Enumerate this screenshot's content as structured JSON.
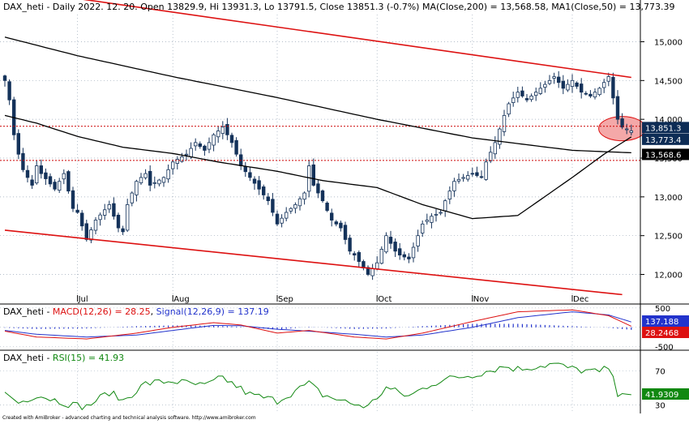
{
  "header": {
    "main_title": "DAX_heti - Daily 2022. 12. 20. Open 13829.9, Hi 13931.3, Lo 13791.5, Close 13851.3 (-0.7%) MA(Close,200) = 13,568.58, MA1(Close,50) = 13,773.39",
    "macd_title_prefix": "DAX_heti - ",
    "macd_title_macd": "MACD(12,26) = 28.25",
    "macd_title_sep": ", ",
    "macd_title_signal": "Signal(12,26,9) = 137.19",
    "rsi_title_prefix": "DAX_heti - ",
    "rsi_title_rsi": "RSI(15) = 41.93",
    "footer": "Created with AmiBroker - advanced charting and technical analysis software. http://www.amibroker.com"
  },
  "colors": {
    "background": "#ffffff",
    "grid": "#9aa8b8",
    "candle": "#14325a",
    "ma200": "#000000",
    "ma50": "#000000",
    "channel": "#dd1111",
    "level": "#cc0000",
    "highlight_fill": "#f4a8a8",
    "macd_line": "#dd1111",
    "signal_line": "#2233cc",
    "rsi_line": "#118811",
    "price_tag": "#0d2c55",
    "ma_tag": "#000000",
    "macd_tag": "#dd1111",
    "signal_tag": "#2233cc",
    "rsi_tag": "#118811"
  },
  "chart_data": [
    {
      "type": "candlestick",
      "panel": "price",
      "x_labels": [
        {
          "label": "Jul",
          "date": "2022-07-01"
        },
        {
          "label": "Aug",
          "date": "2022-08-01"
        },
        {
          "label": "Sep",
          "date": "2022-09-01"
        },
        {
          "label": "Oct",
          "date": "2022-10-03"
        },
        {
          "label": "Nov",
          "date": "2022-11-01"
        },
        {
          "label": "Dec",
          "date": "2022-12-01"
        }
      ],
      "y_ticks": [
        {
          "value": 12000,
          "label": "12,000"
        },
        {
          "value": 12500,
          "label": "12,500"
        },
        {
          "value": 13000,
          "label": "13,000"
        },
        {
          "value": 13500,
          "label": "13,500"
        },
        {
          "value": 14000,
          "label": "14,000"
        },
        {
          "value": 14500,
          "label": "14,500"
        },
        {
          "value": 15000,
          "label": "15,000"
        }
      ],
      "ylim": [
        11650,
        15350
      ],
      "close_anchors": [
        [
          "2022-06-09",
          14500
        ],
        [
          "2022-06-10",
          14250
        ],
        [
          "2022-06-13",
          13800
        ],
        [
          "2022-06-14",
          13550
        ],
        [
          "2022-06-15",
          13350
        ],
        [
          "2022-06-17",
          13150
        ],
        [
          "2022-06-20",
          13400
        ],
        [
          "2022-06-21",
          13300
        ],
        [
          "2022-06-24",
          13100
        ],
        [
          "2022-06-28",
          13300
        ],
        [
          "2022-06-30",
          12850
        ],
        [
          "2022-07-01",
          12800
        ],
        [
          "2022-07-05",
          12450
        ],
        [
          "2022-07-07",
          12700
        ],
        [
          "2022-07-12",
          12900
        ],
        [
          "2022-07-14",
          12600
        ],
        [
          "2022-07-15",
          12550
        ],
        [
          "2022-07-18",
          12900
        ],
        [
          "2022-07-20",
          13200
        ],
        [
          "2022-07-22",
          13300
        ],
        [
          "2022-07-25",
          13150
        ],
        [
          "2022-07-28",
          13250
        ],
        [
          "2022-08-01",
          13450
        ],
        [
          "2022-08-04",
          13550
        ],
        [
          "2022-08-08",
          13700
        ],
        [
          "2022-08-10",
          13600
        ],
        [
          "2022-08-12",
          13800
        ],
        [
          "2022-08-16",
          13900
        ],
        [
          "2022-08-18",
          13700
        ],
        [
          "2022-08-22",
          13400
        ],
        [
          "2022-08-24",
          13250
        ],
        [
          "2022-08-26",
          13100
        ],
        [
          "2022-08-30",
          12950
        ],
        [
          "2022-09-01",
          12650
        ],
        [
          "2022-09-05",
          12800
        ],
        [
          "2022-09-07",
          12900
        ],
        [
          "2022-09-09",
          13050
        ],
        [
          "2022-09-12",
          13400
        ],
        [
          "2022-09-13",
          13150
        ],
        [
          "2022-09-15",
          12950
        ],
        [
          "2022-09-19",
          12700
        ],
        [
          "2022-09-21",
          12600
        ],
        [
          "2022-09-23",
          12300
        ],
        [
          "2022-09-26",
          12250
        ],
        [
          "2022-09-29",
          12000
        ],
        [
          "2022-10-03",
          12150
        ],
        [
          "2022-10-05",
          12500
        ],
        [
          "2022-10-07",
          12300
        ],
        [
          "2022-10-10",
          12250
        ],
        [
          "2022-10-12",
          12200
        ],
        [
          "2022-10-13",
          12350
        ],
        [
          "2022-10-17",
          12650
        ],
        [
          "2022-10-19",
          12750
        ],
        [
          "2022-10-21",
          12800
        ],
        [
          "2022-10-24",
          12950
        ],
        [
          "2022-10-26",
          13200
        ],
        [
          "2022-10-28",
          13250
        ],
        [
          "2022-11-01",
          13300
        ],
        [
          "2022-11-03",
          13250
        ],
        [
          "2022-11-04",
          13450
        ],
        [
          "2022-11-08",
          13700
        ],
        [
          "2022-11-10",
          14050
        ],
        [
          "2022-11-11",
          14200
        ],
        [
          "2022-11-15",
          14350
        ],
        [
          "2022-11-17",
          14250
        ],
        [
          "2022-11-21",
          14350
        ],
        [
          "2022-11-23",
          14450
        ],
        [
          "2022-11-25",
          14550
        ],
        [
          "2022-11-29",
          14400
        ],
        [
          "2022-12-01",
          14500
        ],
        [
          "2022-12-05",
          14350
        ],
        [
          "2022-12-07",
          14300
        ],
        [
          "2022-12-09",
          14400
        ],
        [
          "2022-12-13",
          14550
        ],
        [
          "2022-12-15",
          14000
        ],
        [
          "2022-12-16",
          13900
        ],
        [
          "2022-12-20",
          13851.3
        ]
      ],
      "ma200": [
        [
          "2022-06-09",
          15060
        ],
        [
          "2022-07-01",
          14820
        ],
        [
          "2022-08-01",
          14550
        ],
        [
          "2022-09-01",
          14280
        ],
        [
          "2022-10-03",
          14000
        ],
        [
          "2022-11-01",
          13760
        ],
        [
          "2022-12-01",
          13600
        ],
        [
          "2022-12-20",
          13568.58
        ]
      ],
      "ma50": [
        [
          "2022-06-09",
          14050
        ],
        [
          "2022-06-20",
          13950
        ],
        [
          "2022-07-01",
          13780
        ],
        [
          "2022-07-15",
          13640
        ],
        [
          "2022-08-01",
          13560
        ],
        [
          "2022-08-15",
          13450
        ],
        [
          "2022-09-01",
          13330
        ],
        [
          "2022-09-15",
          13210
        ],
        [
          "2022-10-03",
          13120
        ],
        [
          "2022-10-17",
          12900
        ],
        [
          "2022-11-01",
          12720
        ],
        [
          "2022-11-15",
          12760
        ],
        [
          "2022-12-01",
          13250
        ],
        [
          "2022-12-12",
          13550
        ],
        [
          "2022-12-20",
          13773.39
        ]
      ],
      "channel_upper": [
        [
          "2022-06-09",
          15690
        ],
        [
          "2022-12-23",
          14540
        ]
      ],
      "channel_lower": [
        [
          "2022-06-09",
          12570
        ],
        [
          "2022-12-16",
          11740
        ]
      ],
      "horizontal_levels": [
        13910,
        13470
      ],
      "highlight_ellipse": {
        "center_date": "2022-12-16",
        "center_value": 13880
      },
      "price_labels": [
        {
          "value": 13851.3,
          "label": "13,851.3"
        },
        {
          "value": 13773.4,
          "label": "13,773.4"
        },
        {
          "value": 13568.6,
          "label": "13,568.6"
        }
      ],
      "last_bar": {
        "date": "2022-12-20",
        "open": 13829.9,
        "high": 13931.3,
        "low": 13791.5,
        "close": 13851.3
      }
    },
    {
      "type": "line",
      "panel": "macd",
      "series": [
        {
          "name": "MACD(12,26)",
          "last": 28.25,
          "anchors": [
            [
              "2022-06-09",
              -100
            ],
            [
              "2022-06-20",
              -250
            ],
            [
              "2022-07-05",
              -300
            ],
            [
              "2022-07-20",
              -150
            ],
            [
              "2022-08-01",
              0
            ],
            [
              "2022-08-12",
              120
            ],
            [
              "2022-08-22",
              60
            ],
            [
              "2022-09-01",
              -150
            ],
            [
              "2022-09-12",
              -80
            ],
            [
              "2022-09-26",
              -250
            ],
            [
              "2022-10-05",
              -300
            ],
            [
              "2022-10-17",
              -150
            ],
            [
              "2022-11-01",
              150
            ],
            [
              "2022-11-15",
              400
            ],
            [
              "2022-12-01",
              450
            ],
            [
              "2022-12-13",
              300
            ],
            [
              "2022-12-20",
              28.25
            ]
          ]
        },
        {
          "name": "Signal(12,26,9)",
          "last": 137.19,
          "anchors": [
            [
              "2022-06-09",
              -80
            ],
            [
              "2022-06-20",
              -180
            ],
            [
              "2022-07-05",
              -250
            ],
            [
              "2022-07-20",
              -200
            ],
            [
              "2022-08-01",
              -80
            ],
            [
              "2022-08-12",
              50
            ],
            [
              "2022-08-22",
              40
            ],
            [
              "2022-09-01",
              -50
            ],
            [
              "2022-09-12",
              -100
            ],
            [
              "2022-09-26",
              -180
            ],
            [
              "2022-10-05",
              -250
            ],
            [
              "2022-10-17",
              -200
            ],
            [
              "2022-11-01",
              0
            ],
            [
              "2022-11-15",
              250
            ],
            [
              "2022-12-01",
              400
            ],
            [
              "2022-12-13",
              320
            ],
            [
              "2022-12-20",
              137.19
            ]
          ]
        }
      ],
      "y_ticks": [
        {
          "value": 500,
          "label": "500"
        },
        {
          "value": -500,
          "label": "-500"
        }
      ],
      "ylim": [
        -550,
        560
      ],
      "value_tags": [
        {
          "value": 137.19,
          "label": "137.188"
        },
        {
          "value": 28.25,
          "label": "28.2468"
        }
      ]
    },
    {
      "type": "line",
      "panel": "rsi",
      "series": [
        {
          "name": "RSI(15)",
          "last": 41.93,
          "anchors": [
            [
              "2022-06-09",
              45
            ],
            [
              "2022-06-14",
              32
            ],
            [
              "2022-06-20",
              42
            ],
            [
              "2022-06-30",
              30
            ],
            [
              "2022-07-05",
              28
            ],
            [
              "2022-07-12",
              45
            ],
            [
              "2022-07-15",
              35
            ],
            [
              "2022-07-22",
              55
            ],
            [
              "2022-08-01",
              58
            ],
            [
              "2022-08-10",
              52
            ],
            [
              "2022-08-16",
              62
            ],
            [
              "2022-08-24",
              42
            ],
            [
              "2022-09-01",
              35
            ],
            [
              "2022-09-12",
              55
            ],
            [
              "2022-09-15",
              42
            ],
            [
              "2022-09-23",
              32
            ],
            [
              "2022-09-29",
              28
            ],
            [
              "2022-10-05",
              50
            ],
            [
              "2022-10-12",
              40
            ],
            [
              "2022-10-19",
              55
            ],
            [
              "2022-10-26",
              62
            ],
            [
              "2022-11-01",
              65
            ],
            [
              "2022-11-10",
              75
            ],
            [
              "2022-11-15",
              72
            ],
            [
              "2022-11-25",
              78
            ],
            [
              "2022-12-01",
              72
            ],
            [
              "2022-12-09",
              68
            ],
            [
              "2022-12-13",
              74
            ],
            [
              "2022-12-15",
              44
            ],
            [
              "2022-12-20",
              41.93
            ]
          ]
        }
      ],
      "y_ticks": [
        {
          "value": 70,
          "label": "70"
        },
        {
          "value": 30,
          "label": "30"
        }
      ],
      "ylim": [
        22,
        92
      ],
      "value_tags": [
        {
          "value": 41.93,
          "label": "41.9309"
        }
      ]
    }
  ]
}
